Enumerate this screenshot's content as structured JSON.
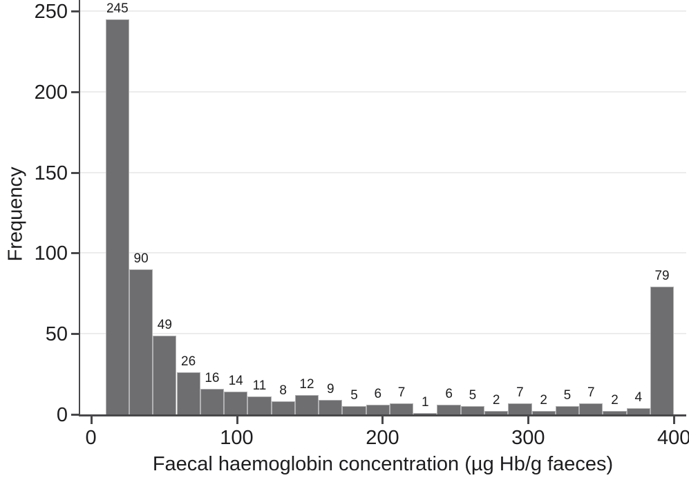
{
  "chart_data": {
    "type": "bar",
    "subtype": "histogram",
    "title": "",
    "xlabel": "Faecal haemoglobin concentration (µg Hb/g faeces)",
    "ylabel": "Frequency",
    "bin_start": 10,
    "bin_width": 16.25,
    "values": [
      245,
      90,
      49,
      26,
      16,
      14,
      11,
      8,
      12,
      9,
      5,
      6,
      7,
      1,
      6,
      5,
      2,
      7,
      2,
      5,
      7,
      2,
      4,
      79
    ],
    "bar_labels": [
      "245",
      "90",
      "49",
      "26",
      "16",
      "14",
      "11",
      "8",
      "12",
      "9",
      "5",
      "6",
      "7",
      "1",
      "6",
      "5",
      "2",
      "7",
      "2",
      "5",
      "7",
      "2",
      "4",
      "79"
    ],
    "x_ticks": [
      0,
      100,
      200,
      300,
      400
    ],
    "y_ticks": [
      0,
      50,
      100,
      150,
      200,
      250
    ],
    "xlim": [
      -8,
      408
    ],
    "ylim": [
      0,
      257
    ],
    "grid": "horizontal",
    "legend": "none",
    "bar_color": "#6e6e70",
    "bar_border_color": "#b2b2b4",
    "axis_color": "#48484b",
    "grid_color": "#ececec",
    "text_color": "#1d1d1f"
  }
}
